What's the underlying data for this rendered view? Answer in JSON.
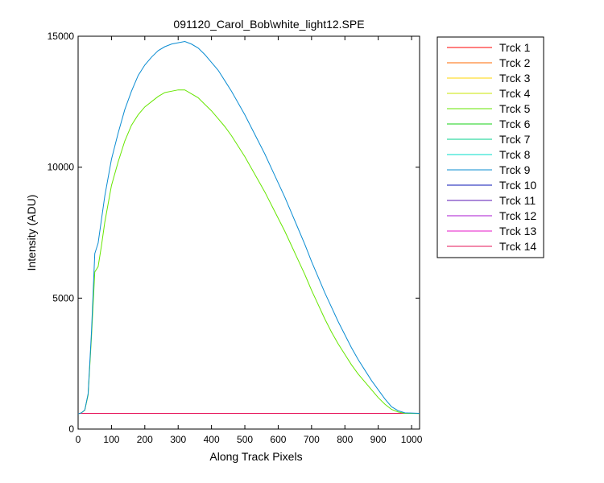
{
  "chart_data": {
    "type": "line",
    "title": "091120_Carol_Bob\\white_light12.SPE",
    "xlabel": "Along Track Pixels",
    "ylabel": "Intensity (ADU)",
    "xlim": [
      0,
      1024
    ],
    "ylim": [
      0,
      15000
    ],
    "xticks": [
      0,
      100,
      200,
      300,
      400,
      500,
      600,
      700,
      800,
      900,
      1000
    ],
    "yticks": [
      0,
      5000,
      10000,
      15000
    ],
    "xtick_labels": [
      "0",
      "100",
      "200",
      "300",
      "400",
      "500",
      "600",
      "700",
      "800",
      "900",
      "1000"
    ],
    "ytick_labels": [
      "0",
      "5000",
      "10000",
      "15000"
    ],
    "grid": false,
    "legend": "outside-top-right",
    "x": [
      0,
      10,
      20,
      30,
      40,
      50,
      60,
      70,
      80,
      90,
      100,
      120,
      140,
      160,
      180,
      200,
      220,
      240,
      260,
      280,
      300,
      320,
      340,
      360,
      380,
      400,
      420,
      440,
      460,
      480,
      500,
      520,
      540,
      560,
      580,
      600,
      620,
      640,
      660,
      680,
      700,
      720,
      740,
      760,
      780,
      800,
      820,
      840,
      860,
      880,
      900,
      920,
      940,
      960,
      980,
      1000,
      1024
    ],
    "series": [
      {
        "name": "Trck 1",
        "color": "#ff0000",
        "values": [
          600,
          600,
          600,
          600,
          600,
          600,
          600,
          600,
          600,
          600,
          600,
          600,
          600,
          600,
          600,
          600,
          600,
          600,
          600,
          600,
          600,
          600,
          600,
          600,
          600,
          600,
          600,
          600,
          600,
          600,
          600,
          600,
          600,
          600,
          600,
          600,
          600,
          600,
          600,
          600,
          600,
          600,
          600,
          600,
          600,
          600,
          600,
          600,
          600,
          600,
          600,
          600,
          600,
          600,
          600,
          600,
          600
        ]
      },
      {
        "name": "Trck 2",
        "color": "#ff6a00",
        "values": [
          600,
          600,
          600,
          600,
          600,
          600,
          600,
          600,
          600,
          600,
          600,
          600,
          600,
          600,
          600,
          600,
          600,
          600,
          600,
          600,
          600,
          600,
          600,
          600,
          600,
          600,
          600,
          600,
          600,
          600,
          600,
          600,
          600,
          600,
          600,
          600,
          600,
          600,
          600,
          600,
          600,
          600,
          600,
          600,
          600,
          600,
          600,
          600,
          600,
          600,
          600,
          600,
          600,
          600,
          600,
          600,
          600
        ]
      },
      {
        "name": "Trck 3",
        "color": "#ffd400",
        "values": [
          600,
          600,
          600,
          600,
          600,
          600,
          600,
          600,
          600,
          600,
          600,
          600,
          600,
          600,
          600,
          600,
          600,
          600,
          600,
          600,
          600,
          600,
          600,
          600,
          600,
          600,
          600,
          600,
          600,
          600,
          600,
          600,
          600,
          600,
          600,
          600,
          600,
          600,
          600,
          600,
          600,
          600,
          600,
          600,
          600,
          600,
          600,
          600,
          600,
          600,
          600,
          600,
          600,
          600,
          600,
          600,
          600
        ]
      },
      {
        "name": "Trck 4",
        "color": "#c8e600",
        "values": [
          600,
          600,
          600,
          600,
          600,
          600,
          600,
          600,
          600,
          600,
          600,
          600,
          600,
          600,
          600,
          600,
          600,
          600,
          600,
          600,
          600,
          600,
          600,
          600,
          600,
          600,
          600,
          600,
          600,
          600,
          600,
          600,
          600,
          600,
          600,
          600,
          600,
          600,
          600,
          600,
          600,
          600,
          600,
          600,
          600,
          600,
          600,
          600,
          600,
          600,
          600,
          600,
          600,
          600,
          600,
          600,
          600
        ]
      },
      {
        "name": "Trck 5",
        "color": "#66e600",
        "values": [
          580,
          620,
          720,
          1300,
          3500,
          6000,
          6200,
          7000,
          7900,
          8600,
          9300,
          10200,
          11000,
          11600,
          12000,
          12300,
          12500,
          12700,
          12850,
          12900,
          12950,
          12950,
          12800,
          12650,
          12400,
          12150,
          11850,
          11550,
          11200,
          10800,
          10400,
          9950,
          9500,
          9050,
          8550,
          8050,
          7550,
          7000,
          6450,
          5900,
          5300,
          4750,
          4200,
          3700,
          3250,
          2850,
          2450,
          2100,
          1800,
          1500,
          1200,
          950,
          750,
          650,
          600,
          600,
          590
        ]
      },
      {
        "name": "Trck 6",
        "color": "#14d214",
        "values": [
          600,
          600,
          600,
          600,
          600,
          600,
          600,
          600,
          600,
          600,
          600,
          600,
          600,
          600,
          600,
          600,
          600,
          600,
          600,
          600,
          600,
          600,
          600,
          600,
          600,
          600,
          600,
          600,
          600,
          600,
          600,
          600,
          600,
          600,
          600,
          600,
          600,
          600,
          600,
          600,
          600,
          600,
          600,
          600,
          600,
          600,
          600,
          600,
          600,
          600,
          600,
          600,
          600,
          600,
          600,
          600,
          600
        ]
      },
      {
        "name": "Trck 7",
        "color": "#00d28c",
        "values": [
          600,
          600,
          600,
          600,
          600,
          600,
          600,
          600,
          600,
          600,
          600,
          600,
          600,
          600,
          600,
          600,
          600,
          600,
          600,
          600,
          600,
          600,
          600,
          600,
          600,
          600,
          600,
          600,
          600,
          600,
          600,
          600,
          600,
          600,
          600,
          600,
          600,
          600,
          600,
          600,
          600,
          600,
          600,
          600,
          600,
          600,
          600,
          600,
          600,
          600,
          600,
          600,
          600,
          600,
          600,
          600,
          600
        ]
      },
      {
        "name": "Trck 8",
        "color": "#00dcc8",
        "values": [
          600,
          600,
          600,
          600,
          600,
          600,
          600,
          600,
          600,
          600,
          600,
          600,
          600,
          600,
          600,
          600,
          600,
          600,
          600,
          600,
          600,
          600,
          600,
          600,
          600,
          600,
          600,
          600,
          600,
          600,
          600,
          600,
          600,
          600,
          600,
          600,
          600,
          600,
          600,
          600,
          600,
          600,
          600,
          600,
          600,
          600,
          600,
          600,
          600,
          600,
          600,
          600,
          600,
          600,
          600,
          600,
          600
        ]
      },
      {
        "name": "Trck 9",
        "color": "#0a8cd2",
        "values": [
          580,
          620,
          730,
          1350,
          3700,
          6700,
          7100,
          8000,
          8900,
          9600,
          10300,
          11300,
          12200,
          12900,
          13500,
          13900,
          14200,
          14450,
          14600,
          14700,
          14750,
          14800,
          14700,
          14550,
          14300,
          14000,
          13700,
          13300,
          12900,
          12450,
          12000,
          11500,
          11000,
          10500,
          9950,
          9400,
          8850,
          8250,
          7650,
          7050,
          6400,
          5800,
          5200,
          4650,
          4100,
          3600,
          3100,
          2650,
          2250,
          1850,
          1500,
          1150,
          850,
          700,
          620,
          610,
          600
        ]
      },
      {
        "name": "Trck 10",
        "color": "#0a14b4",
        "values": [
          600,
          600,
          600,
          600,
          600,
          600,
          600,
          600,
          600,
          600,
          600,
          600,
          600,
          600,
          600,
          600,
          600,
          600,
          600,
          600,
          600,
          600,
          600,
          600,
          600,
          600,
          600,
          600,
          600,
          600,
          600,
          600,
          600,
          600,
          600,
          600,
          600,
          600,
          600,
          600,
          600,
          600,
          600,
          600,
          600,
          600,
          600,
          600,
          600,
          600,
          600,
          600,
          600,
          600,
          600,
          600,
          600
        ]
      },
      {
        "name": "Trck 11",
        "color": "#5a14b4",
        "values": [
          600,
          600,
          600,
          600,
          600,
          600,
          600,
          600,
          600,
          600,
          600,
          600,
          600,
          600,
          600,
          600,
          600,
          600,
          600,
          600,
          600,
          600,
          600,
          600,
          600,
          600,
          600,
          600,
          600,
          600,
          600,
          600,
          600,
          600,
          600,
          600,
          600,
          600,
          600,
          600,
          600,
          600,
          600,
          600,
          600,
          600,
          600,
          600,
          600,
          600,
          600,
          600,
          600,
          600,
          600,
          600,
          600
        ]
      },
      {
        "name": "Trck 12",
        "color": "#aa14d2",
        "values": [
          600,
          600,
          600,
          600,
          600,
          600,
          600,
          600,
          600,
          600,
          600,
          600,
          600,
          600,
          600,
          600,
          600,
          600,
          600,
          600,
          600,
          600,
          600,
          600,
          600,
          600,
          600,
          600,
          600,
          600,
          600,
          600,
          600,
          600,
          600,
          600,
          600,
          600,
          600,
          600,
          600,
          600,
          600,
          600,
          600,
          600,
          600,
          600,
          600,
          600,
          600,
          600,
          600,
          600,
          600,
          600,
          600
        ]
      },
      {
        "name": "Trck 13",
        "color": "#e614c8",
        "values": [
          600,
          600,
          600,
          600,
          600,
          600,
          600,
          600,
          600,
          600,
          600,
          600,
          600,
          600,
          600,
          600,
          600,
          600,
          600,
          600,
          600,
          600,
          600,
          600,
          600,
          600,
          600,
          600,
          600,
          600,
          600,
          600,
          600,
          600,
          600,
          600,
          600,
          600,
          600,
          600,
          600,
          600,
          600,
          600,
          600,
          600,
          600,
          600,
          600,
          600,
          600,
          600,
          600,
          600,
          600,
          600,
          600
        ]
      },
      {
        "name": "Trck 14",
        "color": "#e6145a",
        "values": [
          600,
          600,
          600,
          600,
          600,
          600,
          600,
          600,
          600,
          600,
          600,
          600,
          600,
          600,
          600,
          600,
          600,
          600,
          600,
          600,
          600,
          600,
          600,
          600,
          600,
          600,
          600,
          600,
          600,
          600,
          600,
          600,
          600,
          600,
          600,
          600,
          600,
          600,
          600,
          600,
          600,
          600,
          600,
          600,
          600,
          600,
          600,
          600,
          600,
          600,
          600,
          600,
          600,
          600,
          600,
          600,
          600
        ]
      }
    ]
  }
}
